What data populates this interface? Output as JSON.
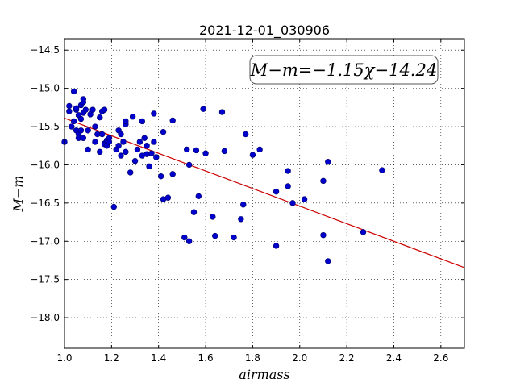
{
  "chart_data": {
    "type": "scatter",
    "title": "2021-12-01_030906",
    "xlabel": "airmass",
    "ylabel": "M−m",
    "xlim": [
      1.0,
      2.7
    ],
    "ylim": [
      -18.4,
      -14.35
    ],
    "y_inverted": true,
    "grid": true,
    "x_ticks": [
      "1.0",
      "1.2",
      "1.4",
      "1.6",
      "1.8",
      "2.0",
      "2.2",
      "2.4",
      "2.6"
    ],
    "x_tick_values": [
      1.0,
      1.2,
      1.4,
      1.6,
      1.8,
      2.0,
      2.2,
      2.4,
      2.6
    ],
    "y_ticks": [
      "−14.5",
      "−15.0",
      "−15.5",
      "−16.0",
      "−16.5",
      "−17.0",
      "−17.5",
      "−18.0"
    ],
    "y_tick_values": [
      -14.5,
      -15.0,
      -15.5,
      -16.0,
      -16.5,
      -17.0,
      -17.5,
      -18.0
    ],
    "fit_label": "M−m=−1.15χ−14.24",
    "fit_line": {
      "slope": -1.15,
      "intercept": -14.24,
      "color": "#cc0000"
    },
    "point_color": "#0000cc",
    "points": [
      [
        1.0,
        -15.7
      ],
      [
        1.02,
        -15.3
      ],
      [
        1.02,
        -15.23
      ],
      [
        1.04,
        -15.04
      ],
      [
        1.03,
        -15.5
      ],
      [
        1.04,
        -15.43
      ],
      [
        1.05,
        -15.28
      ],
      [
        1.05,
        -15.55
      ],
      [
        1.05,
        -15.26
      ],
      [
        1.06,
        -15.35
      ],
      [
        1.06,
        -15.6
      ],
      [
        1.06,
        -15.65
      ],
      [
        1.07,
        -15.4
      ],
      [
        1.07,
        -15.55
      ],
      [
        1.07,
        -15.22
      ],
      [
        1.08,
        -15.32
      ],
      [
        1.08,
        -15.18
      ],
      [
        1.08,
        -15.14
      ],
      [
        1.08,
        -15.65
      ],
      [
        1.09,
        -15.28
      ],
      [
        1.1,
        -15.55
      ],
      [
        1.1,
        -15.8
      ],
      [
        1.11,
        -15.34
      ],
      [
        1.12,
        -15.28
      ],
      [
        1.13,
        -15.5
      ],
      [
        1.13,
        -15.7
      ],
      [
        1.14,
        -15.6
      ],
      [
        1.15,
        -15.83
      ],
      [
        1.15,
        -15.38
      ],
      [
        1.16,
        -15.3
      ],
      [
        1.16,
        -15.6
      ],
      [
        1.17,
        -15.72
      ],
      [
        1.17,
        -15.73
      ],
      [
        1.17,
        -15.28
      ],
      [
        1.18,
        -15.68
      ],
      [
        1.18,
        -15.75
      ],
      [
        1.19,
        -15.65
      ],
      [
        1.19,
        -15.7
      ],
      [
        1.21,
        -16.55
      ],
      [
        1.22,
        -15.8
      ],
      [
        1.23,
        -15.55
      ],
      [
        1.23,
        -15.75
      ],
      [
        1.24,
        -15.6
      ],
      [
        1.24,
        -15.88
      ],
      [
        1.25,
        -15.7
      ],
      [
        1.26,
        -15.83
      ],
      [
        1.26,
        -15.47
      ],
      [
        1.26,
        -15.43
      ],
      [
        1.28,
        -16.1
      ],
      [
        1.29,
        -15.37
      ],
      [
        1.3,
        -15.95
      ],
      [
        1.31,
        -15.8
      ],
      [
        1.32,
        -15.7
      ],
      [
        1.33,
        -15.88
      ],
      [
        1.33,
        -15.43
      ],
      [
        1.34,
        -15.65
      ],
      [
        1.35,
        -15.75
      ],
      [
        1.35,
        -15.86
      ],
      [
        1.36,
        -16.02
      ],
      [
        1.37,
        -15.85
      ],
      [
        1.38,
        -15.7
      ],
      [
        1.38,
        -15.33
      ],
      [
        1.39,
        -15.9
      ],
      [
        1.41,
        -16.15
      ],
      [
        1.42,
        -16.45
      ],
      [
        1.42,
        -15.57
      ],
      [
        1.44,
        -16.43
      ],
      [
        1.46,
        -15.42
      ],
      [
        1.46,
        -16.12
      ],
      [
        1.51,
        -16.95
      ],
      [
        1.52,
        -15.8
      ],
      [
        1.53,
        -16.0
      ],
      [
        1.53,
        -17.0
      ],
      [
        1.55,
        -16.62
      ],
      [
        1.56,
        -15.81
      ],
      [
        1.57,
        -16.41
      ],
      [
        1.59,
        -15.27
      ],
      [
        1.6,
        -15.85
      ],
      [
        1.63,
        -16.68
      ],
      [
        1.64,
        -16.93
      ],
      [
        1.67,
        -15.31
      ],
      [
        1.68,
        -15.82
      ],
      [
        1.72,
        -16.95
      ],
      [
        1.75,
        -16.71
      ],
      [
        1.76,
        -16.52
      ],
      [
        1.77,
        -15.6
      ],
      [
        1.8,
        -15.87
      ],
      [
        1.83,
        -15.8
      ],
      [
        1.9,
        -16.35
      ],
      [
        1.9,
        -17.06
      ],
      [
        1.95,
        -16.28
      ],
      [
        1.95,
        -16.08
      ],
      [
        1.97,
        -16.5
      ],
      [
        2.02,
        -16.45
      ],
      [
        2.1,
        -16.21
      ],
      [
        2.1,
        -16.92
      ],
      [
        2.12,
        -15.96
      ],
      [
        2.12,
        -17.26
      ],
      [
        2.27,
        -16.88
      ],
      [
        2.35,
        -16.07
      ]
    ]
  }
}
